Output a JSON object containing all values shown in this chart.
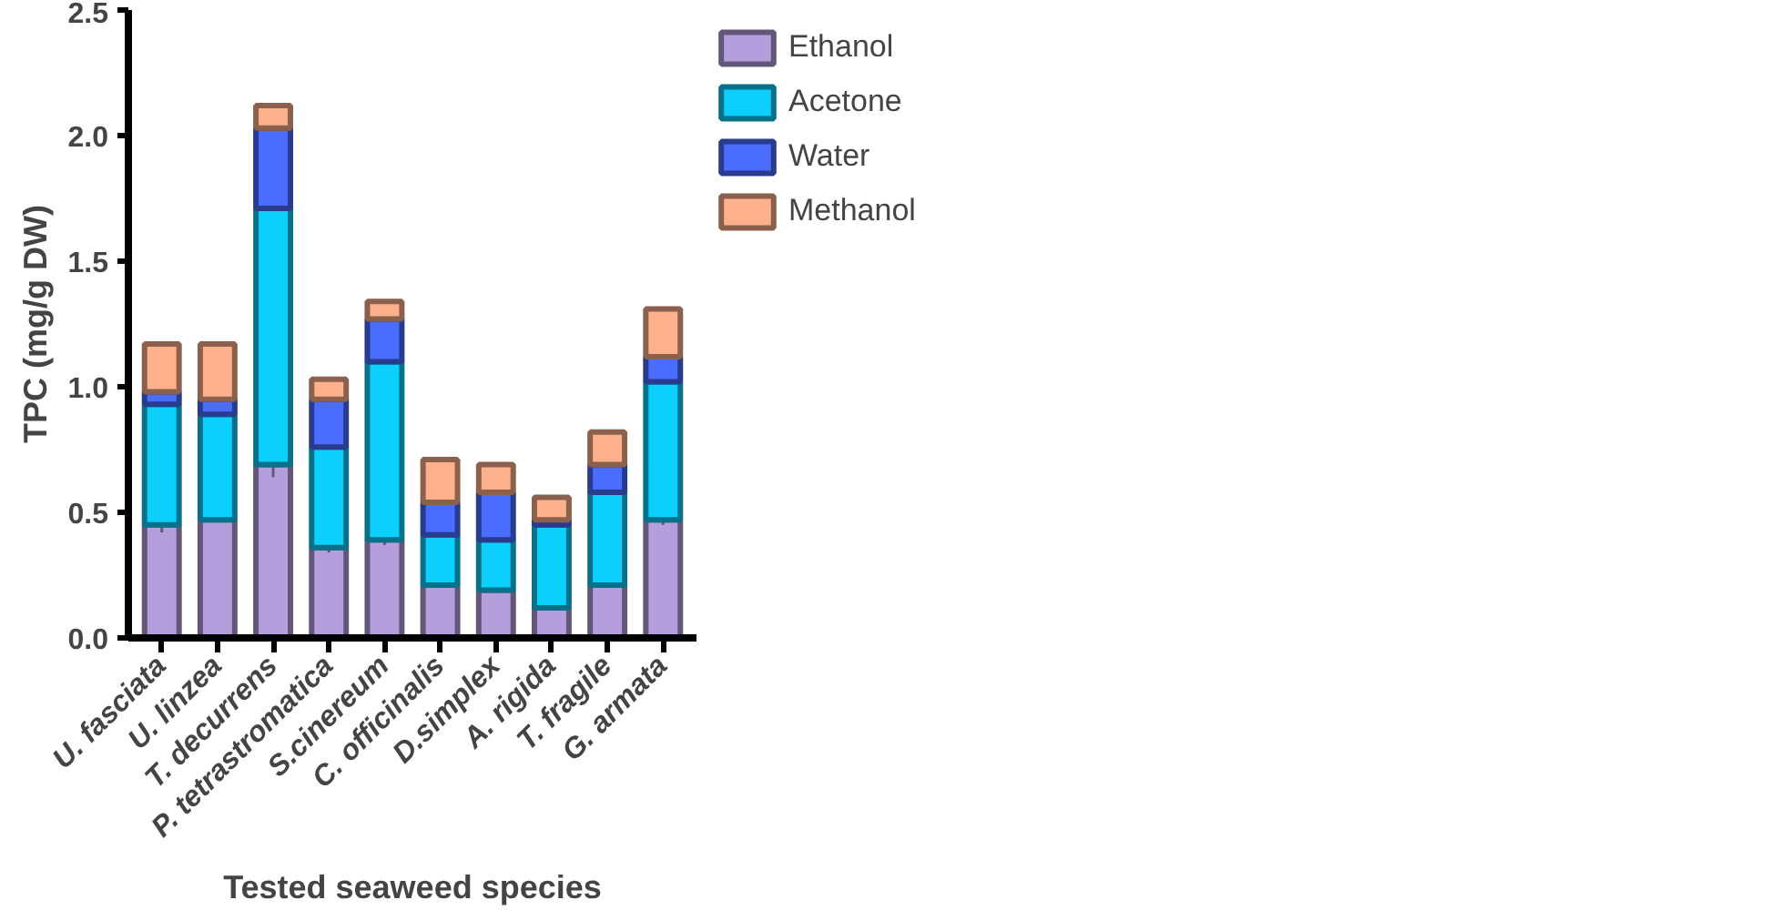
{
  "chart_data": {
    "type": "bar",
    "stacked": true,
    "xlabel": "Tested seaweed species",
    "ylabel": "TPC (mg/g DW)",
    "categories": [
      "U. fasciata",
      "U. linzea",
      "T. decurrens",
      "P. tetrastromatica",
      "S.cinereum",
      "C. officinalis",
      "D.simplex",
      "A. rigida",
      "T. fragile",
      "G. armata"
    ],
    "series": [
      {
        "name": "Ethanol",
        "color": "#b49fdc",
        "values": [
          0.45,
          0.47,
          0.69,
          0.36,
          0.39,
          0.21,
          0.19,
          0.12,
          0.21,
          0.47
        ],
        "errors": [
          0.03,
          0.01,
          0.05,
          0.02,
          0.02,
          0.01,
          0.01,
          0.01,
          0.01,
          0.02
        ]
      },
      {
        "name": "Acetone",
        "color": "#0dcffc",
        "values": [
          0.48,
          0.42,
          1.02,
          0.4,
          0.71,
          0.2,
          0.2,
          0.33,
          0.37,
          0.55
        ]
      },
      {
        "name": "Water",
        "color": "#4a6cff",
        "values": [
          0.05,
          0.06,
          0.32,
          0.19,
          0.17,
          0.13,
          0.19,
          0.02,
          0.11,
          0.1
        ]
      },
      {
        "name": "Methanol",
        "color": "#fdb08c",
        "values": [
          0.19,
          0.22,
          0.09,
          0.08,
          0.07,
          0.17,
          0.11,
          0.09,
          0.13,
          0.19
        ]
      }
    ],
    "ylim": [
      0,
      2.5
    ],
    "yticks": [
      {
        "value": 0,
        "label": "0.0"
      },
      {
        "value": 0.5,
        "label": "0.5"
      },
      {
        "value": 1,
        "label": "1.0"
      },
      {
        "value": 1.5,
        "label": "1.5"
      },
      {
        "value": 2,
        "label": "2.0"
      },
      {
        "value": 2.5,
        "label": "2.5"
      }
    ],
    "grid": false,
    "legend": "top right"
  }
}
